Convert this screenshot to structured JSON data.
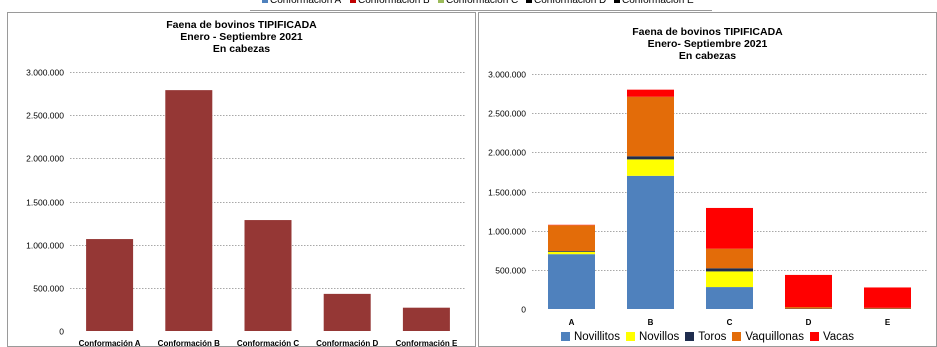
{
  "legend_strip": {
    "items": [
      {
        "label": "Conformación A",
        "color": "#4f81bd"
      },
      {
        "label": "Conformación B",
        "color": "#c00000"
      },
      {
        "label": "Conformación C",
        "color": "#9bbb59"
      },
      {
        "label": "Conformación D",
        "color": "#000000"
      },
      {
        "label": "Conformación E",
        "color": "#000000"
      }
    ]
  },
  "chart_data": [
    {
      "type": "bar",
      "title": "Faena de bovinos TIPIFICADA",
      "subtitle": "Enero - Septiembre 2021",
      "subtitle2": "En cabezas",
      "categories": [
        "Conformación A",
        "Conformación B",
        "Conformación C",
        "Conformación D",
        "Conformación E"
      ],
      "values": [
        1065000,
        2790000,
        1285000,
        430000,
        270000
      ],
      "ylim": [
        0,
        3000000
      ],
      "yticks": [
        0,
        500000,
        1000000,
        1500000,
        2000000,
        2500000,
        3000000
      ],
      "ytick_labels": [
        "0",
        "500.000",
        "1.000.000",
        "1.500.000",
        "2.000.000",
        "2.500.000",
        "3.000.000"
      ],
      "bar_color": "#953735",
      "grid": true,
      "legend": "none"
    },
    {
      "type": "bar",
      "stacked": true,
      "title": "Faena de bovinos TIPIFICADA",
      "subtitle": "Enero- Septiembre 2021",
      "subtitle2": "En cabezas",
      "categories": [
        "A",
        "B",
        "C",
        "D",
        "E"
      ],
      "series": [
        {
          "name": "Novillitos",
          "color": "#4f81bd",
          "values": [
            700000,
            1700000,
            280000,
            0,
            0
          ]
        },
        {
          "name": "Novillos",
          "color": "#ffff00",
          "values": [
            30000,
            210000,
            200000,
            0,
            0
          ]
        },
        {
          "name": "Toros",
          "color": "#1f2d4e",
          "values": [
            10000,
            40000,
            40000,
            5000,
            5000
          ]
        },
        {
          "name": "Vaquillonas",
          "color": "#e36c09",
          "values": [
            330000,
            760000,
            250000,
            20000,
            10000
          ]
        },
        {
          "name": "Vacas",
          "color": "#ff0000",
          "values": [
            5000,
            90000,
            520000,
            410000,
            260000
          ]
        }
      ],
      "ylim": [
        0,
        3000000
      ],
      "yticks": [
        0,
        500000,
        1000000,
        1500000,
        2000000,
        2500000,
        3000000
      ],
      "ytick_labels": [
        "0",
        "500.000",
        "1.000.000",
        "1.500.000",
        "2.000.000",
        "2.500.000",
        "3.000.000"
      ],
      "grid": true,
      "legend": "bottom"
    }
  ]
}
